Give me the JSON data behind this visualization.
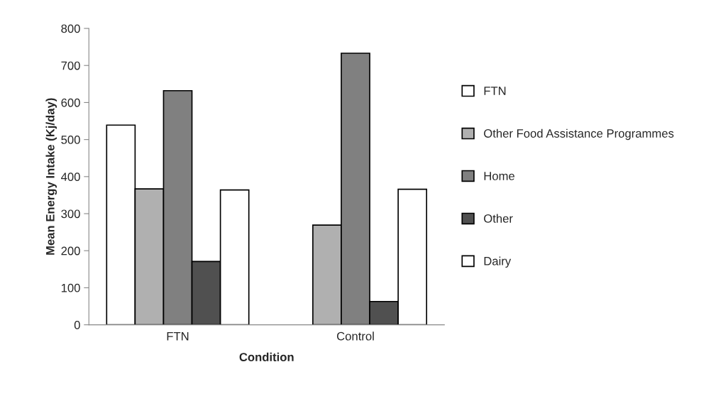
{
  "chart_data": {
    "type": "bar",
    "xlabel": "Condition",
    "ylabel": "Mean Energy Intake (Kj/day)",
    "categories": [
      "FTN",
      "Control"
    ],
    "series": [
      {
        "name": "FTN",
        "color": "#ffffff",
        "values": [
          539,
          null
        ]
      },
      {
        "name": "Other Food Assistance Programmes",
        "color": "#b0b0b0",
        "values": [
          367,
          269
        ]
      },
      {
        "name": "Home",
        "color": "#808080",
        "values": [
          632,
          733
        ]
      },
      {
        "name": "Other",
        "color": "#505050",
        "values": [
          171,
          63
        ]
      },
      {
        "name": "Dairy",
        "color": "#ffffff",
        "values": [
          364,
          366
        ]
      }
    ],
    "ylim": [
      0,
      800
    ],
    "yticks": [
      0,
      100,
      200,
      300,
      400,
      500,
      600,
      700,
      800
    ],
    "grid": false,
    "legend": "right"
  }
}
